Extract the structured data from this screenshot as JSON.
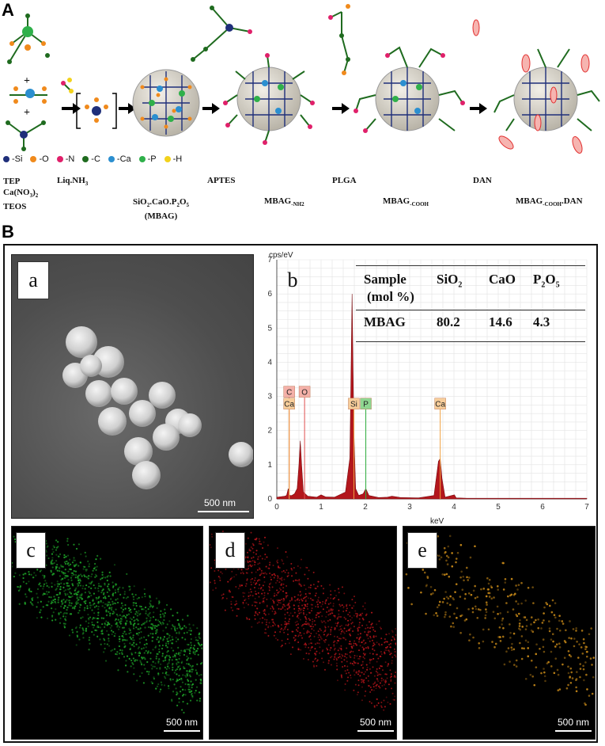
{
  "panel_a": {
    "letter": "A",
    "reagents": [
      "TEP",
      "Ca(NO3)2",
      "TEOS"
    ],
    "reagent_labels": {
      "tep": "TEP",
      "ca": "Ca(NO",
      "ca_sub1": "3",
      "ca_close": ")",
      "ca_sub2": "2",
      "teos": "TEOS"
    },
    "plus": "+",
    "step_labels": {
      "liq": "Liq.NH",
      "liq_sub": "3",
      "aptes": "APTES",
      "plga": "PLGA",
      "dan": "DAN"
    },
    "product_labels": {
      "mbag_formula": "SiO",
      "mbag_sub1": "2",
      "mbag_mid": ".CaO.P",
      "mbag_sub2": "2",
      "mbag_o": "O",
      "mbag_sub3": "5",
      "mbag_name": "(MBAG)",
      "nh2": "MBAG",
      "nh2_sub": "-NH2",
      "cooh": "MBAG",
      "cooh_sub": "-COOH",
      "cooh_dan": "MBAG",
      "cooh_dan_sub": "-COOH",
      "cooh_dan_suffix": ".DAN"
    },
    "legend": [
      {
        "label": "-Si",
        "color": "#1f2f7a"
      },
      {
        "label": "-O",
        "color": "#f08a1c"
      },
      {
        "label": "-N",
        "color": "#e0206a"
      },
      {
        "label": "-C",
        "color": "#1f6b1f"
      },
      {
        "label": "-Ca",
        "color": "#2b8fd0"
      },
      {
        "label": "-P",
        "color": "#2fb04a"
      },
      {
        "label": "-H",
        "color": "#f2d21c"
      }
    ]
  },
  "panel_b": {
    "letter": "B",
    "sub_letters": {
      "a": "a",
      "b": "b",
      "c": "c",
      "d": "d",
      "e": "e"
    },
    "scale_bars": {
      "a": "500 nm",
      "c": "500 nm",
      "d": "500 nm",
      "e": "500 nm"
    },
    "table": {
      "header": {
        "sample": "Sample",
        "mol": "(mol %)",
        "sio2": "SiO",
        "sio2_sub": "2",
        "cao": "CaO",
        "p2o5_a": "P",
        "p2o5_sub1": "2",
        "p2o5_b": "O",
        "p2o5_sub2": "5"
      },
      "row": {
        "sample": "MBAG",
        "sio2": "80.2",
        "cao": "14.6",
        "p2o5": "4.3"
      }
    },
    "colors": {
      "green_map": "#1fa82a",
      "red_map": "#c0161c",
      "ca_map": "#c98a18",
      "eds_fill": "#b3161c"
    }
  },
  "chart_data": {
    "type": "line",
    "title": "",
    "xlabel": "keV",
    "ylabel": "cps/eV",
    "xlim": [
      0,
      7
    ],
    "ylim": [
      0,
      7
    ],
    "xticks": [
      0,
      1,
      2,
      3,
      4,
      5,
      6,
      7
    ],
    "yticks": [
      0,
      1,
      2,
      3,
      4,
      5,
      6,
      7
    ],
    "grid": true,
    "series": [
      {
        "x": [
          0.0,
          0.18,
          0.22,
          0.26,
          0.28,
          0.3,
          0.34,
          0.4,
          0.46,
          0.5,
          0.53,
          0.56,
          0.6,
          0.7,
          0.9,
          1.0,
          1.1,
          1.3,
          1.55,
          1.65,
          1.7,
          1.74,
          1.78,
          1.85,
          1.95,
          2.01,
          2.08,
          2.3,
          2.5,
          2.6,
          2.8,
          3.2,
          3.55,
          3.65,
          3.69,
          3.73,
          3.8,
          4.01,
          4.05,
          4.3,
          5.0,
          6.0,
          7.0
        ],
        "y": [
          0.05,
          0.08,
          0.1,
          0.3,
          0.12,
          0.1,
          0.1,
          0.15,
          0.3,
          1.0,
          1.7,
          1.0,
          0.2,
          0.08,
          0.05,
          0.12,
          0.06,
          0.05,
          0.2,
          1.2,
          6.0,
          2.0,
          0.3,
          0.1,
          0.15,
          0.3,
          0.1,
          0.04,
          0.05,
          0.08,
          0.04,
          0.03,
          0.1,
          1.1,
          1.18,
          0.6,
          0.05,
          0.12,
          0.03,
          0.02,
          0.02,
          0.02,
          0.02
        ]
      }
    ],
    "peak_labels": [
      {
        "text": "C",
        "x": 0.28,
        "bg": "#f4b0a8"
      },
      {
        "text": "O",
        "x": 0.52,
        "bg": "#f4b0a8"
      },
      {
        "text": "Ca",
        "x": 0.28,
        "bg": "#f7cd9a"
      },
      {
        "text": "Si",
        "x": 1.74,
        "bg": "#f7cd9a"
      },
      {
        "text": "P",
        "x": 2.01,
        "bg": "#8ed690"
      },
      {
        "text": "Ca",
        "x": 3.69,
        "bg": "#f7cd9a"
      }
    ]
  }
}
